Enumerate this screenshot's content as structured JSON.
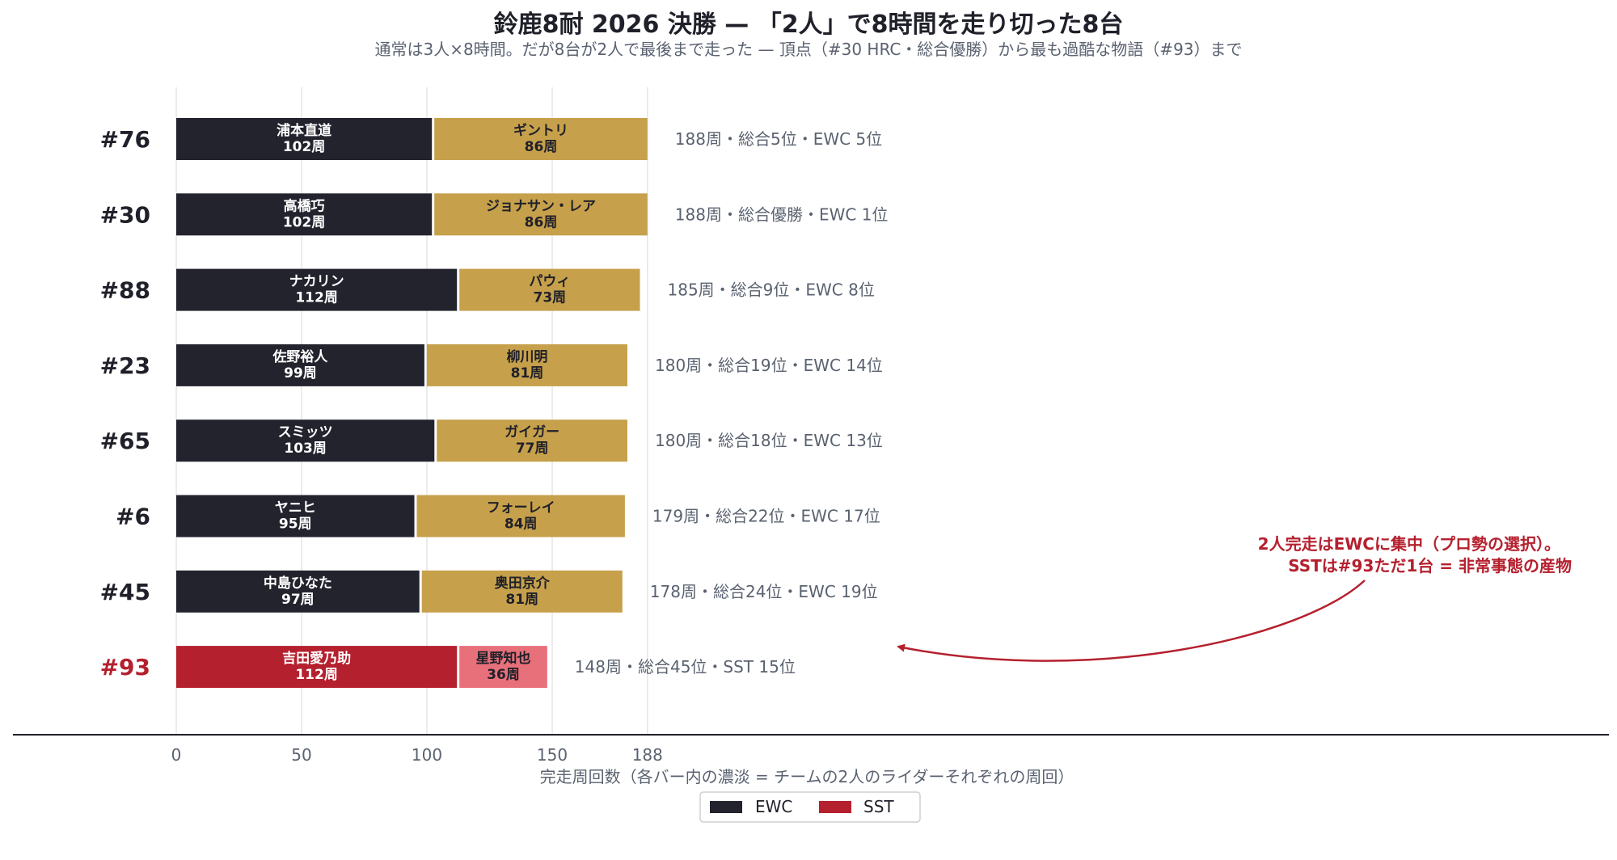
{
  "colors": {
    "ewc_first": "#22232d",
    "ewc_second": "#c6a04b",
    "sst_first": "#b5202e",
    "sst_second": "#e8707a",
    "accent": "#b5202e",
    "axis": "#1f2029",
    "grid": "#e5e5e5",
    "muted_text": "#5a6270"
  },
  "chart_data": {
    "type": "bar",
    "orientation": "horizontal",
    "stacked": true,
    "title": "鈴鹿8耐 2026 決勝 — 「2人」で8時間を走り切った8台",
    "subtitle": "通常は3人×8時間。だが8台が2人で最後まで走った — 頂点（#30 HRC・総合優勝）から最も過酷な物語（#93）まで",
    "xlabel": "完走周回数（各バー内の濃淡 = チームの2人のライダーそれぞれの周回）",
    "ylabel": "",
    "xlim": [
      0,
      188
    ],
    "xticks": [
      0,
      50,
      100,
      150,
      188
    ],
    "grid": true,
    "legend_position": "bottom-center",
    "legend": [
      {
        "label": "EWC",
        "class": "EWC"
      },
      {
        "label": "SST",
        "class": "SST"
      }
    ],
    "teams": [
      {
        "team": "#76",
        "class": "EWC",
        "riders": [
          {
            "name": "浦本直道",
            "laps": 102,
            "laps_label": "102周"
          },
          {
            "name": "ギントリ",
            "laps": 86,
            "laps_label": "86周"
          }
        ],
        "note": "188周・総合5位・EWC 5位"
      },
      {
        "team": "#30",
        "class": "EWC",
        "riders": [
          {
            "name": "高橋巧",
            "laps": 102,
            "laps_label": "102周"
          },
          {
            "name": "ジョナサン・レア",
            "laps": 86,
            "laps_label": "86周"
          }
        ],
        "note": "188周・総合優勝・EWC 1位"
      },
      {
        "team": "#88",
        "class": "EWC",
        "riders": [
          {
            "name": "ナカリン",
            "laps": 112,
            "laps_label": "112周"
          },
          {
            "name": "パウィ",
            "laps": 73,
            "laps_label": "73周"
          }
        ],
        "note": "185周・総合9位・EWC 8位"
      },
      {
        "team": "#23",
        "class": "EWC",
        "riders": [
          {
            "name": "佐野裕人",
            "laps": 99,
            "laps_label": "99周"
          },
          {
            "name": "柳川明",
            "laps": 81,
            "laps_label": "81周"
          }
        ],
        "note": "180周・総合19位・EWC 14位"
      },
      {
        "team": "#65",
        "class": "EWC",
        "riders": [
          {
            "name": "スミッツ",
            "laps": 103,
            "laps_label": "103周"
          },
          {
            "name": "ガイガー",
            "laps": 77,
            "laps_label": "77周"
          }
        ],
        "note": "180周・総合18位・EWC 13位"
      },
      {
        "team": "#6",
        "class": "EWC",
        "riders": [
          {
            "name": "ヤニヒ",
            "laps": 95,
            "laps_label": "95周"
          },
          {
            "name": "フォーレイ",
            "laps": 84,
            "laps_label": "84周"
          }
        ],
        "note": "179周・総合22位・EWC 17位"
      },
      {
        "team": "#45",
        "class": "EWC",
        "riders": [
          {
            "name": "中島ひなた",
            "laps": 97,
            "laps_label": "97周"
          },
          {
            "name": "奥田京介",
            "laps": 81,
            "laps_label": "81周"
          }
        ],
        "note": "178周・総合24位・EWC 19位"
      },
      {
        "team": "#93",
        "class": "SST",
        "riders": [
          {
            "name": "吉田愛乃助",
            "laps": 112,
            "laps_label": "112周"
          },
          {
            "name": "星野知也",
            "laps": 36,
            "laps_label": "36周"
          }
        ],
        "note": "148周・総合45位・SST 15位"
      }
    ],
    "annotations": [
      {
        "target_team": "#93",
        "lines": [
          "2人完走はEWCに集中（プロ勢の選択）。",
          "SSTは#93ただ1台 = 非常事態の産物"
        ]
      }
    ]
  }
}
